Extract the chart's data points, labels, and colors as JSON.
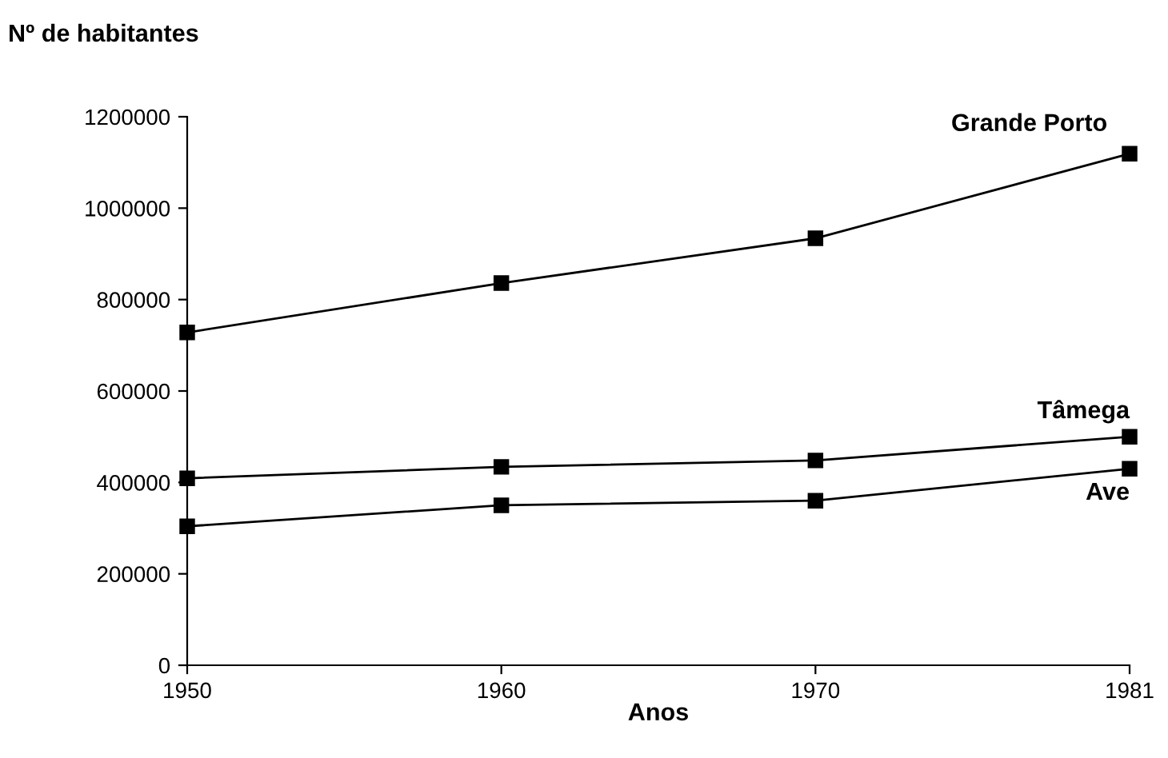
{
  "chart_data": {
    "type": "line",
    "ylabel": "Nº de habitantes",
    "xlabel": "Anos",
    "categories": [
      "1950",
      "1960",
      "1970",
      "1981"
    ],
    "series": [
      {
        "name": "Grande Porto",
        "color": "#000000",
        "values": [
          728000,
          836000,
          934000,
          1119000
        ]
      },
      {
        "name": "Tâmega",
        "color": "#000000",
        "values": [
          409000,
          434000,
          448000,
          500000
        ]
      },
      {
        "name": "Ave",
        "color": "#000000",
        "values": [
          304000,
          350000,
          360000,
          430000
        ]
      }
    ],
    "ylim": [
      0,
      1200000
    ],
    "yticks": [
      0,
      200000,
      400000,
      600000,
      800000,
      1000000,
      1200000
    ],
    "marker": "square",
    "line_style": "solid",
    "grid": false,
    "legend": false
  }
}
